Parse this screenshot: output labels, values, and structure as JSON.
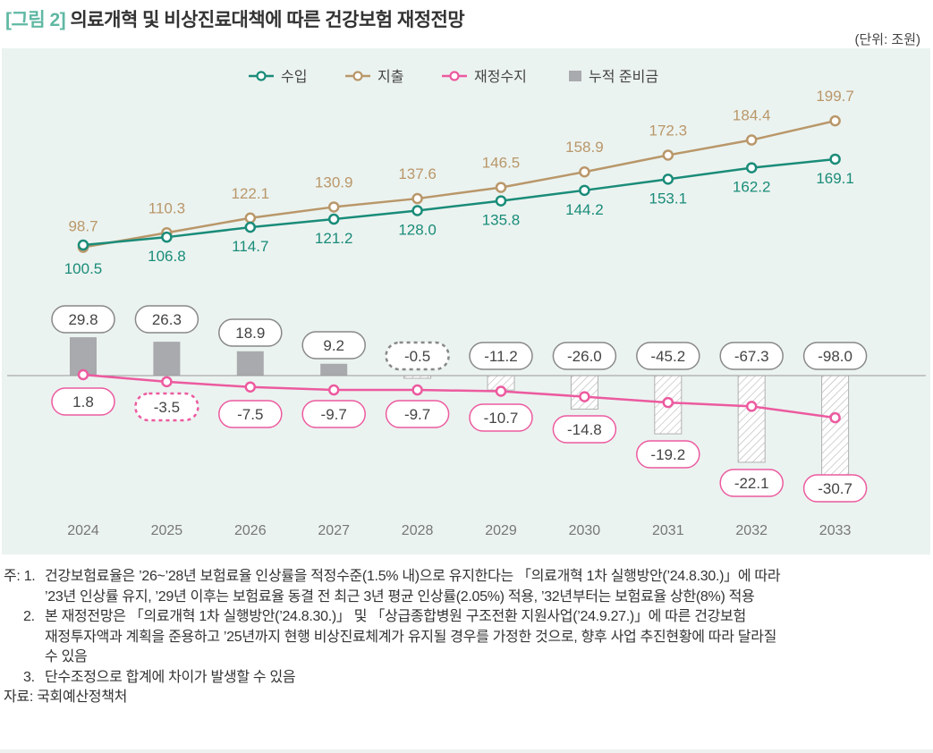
{
  "figure_label": "[그림 2]",
  "title": "의료개혁 및 비상진료대책에 따른 건강보험 재정전망",
  "unit": "(단위: 조원)",
  "colors": {
    "revenue": "#1a8c79",
    "expenditure": "#b9976a",
    "balance": "#ec5a9f",
    "reserve": "#a9aaad",
    "background": "#ebf3f0"
  },
  "chart_data": {
    "type": "line+bar",
    "categories": [
      "2024",
      "2025",
      "2026",
      "2027",
      "2028",
      "2029",
      "2030",
      "2031",
      "2032",
      "2033"
    ],
    "legend_placement": "top-center",
    "grid": false,
    "series": [
      {
        "name": "수입",
        "type": "line",
        "values": [
          100.5,
          106.8,
          114.7,
          121.2,
          128.0,
          135.8,
          144.2,
          153.1,
          162.2,
          169.1
        ],
        "labels": [
          "100.5",
          "106.8",
          "114.7",
          "121.2",
          "128.0",
          "135.8",
          "144.2",
          "153.1",
          "162.2",
          "169.1"
        ]
      },
      {
        "name": "지출",
        "type": "line",
        "values": [
          98.7,
          110.3,
          122.1,
          130.9,
          137.6,
          146.5,
          158.9,
          172.3,
          184.4,
          199.7
        ],
        "labels": [
          "98.7",
          "110.3",
          "122.1",
          "130.9",
          "137.6",
          "146.5",
          "158.9",
          "172.3",
          "184.4",
          "199.7"
        ]
      },
      {
        "name": "재정수지",
        "type": "line",
        "values": [
          1.8,
          -3.5,
          -7.5,
          -9.7,
          -9.7,
          -10.7,
          -14.8,
          -19.2,
          -22.1,
          -30.7
        ],
        "labels": [
          "1.8",
          "-3.5",
          "-7.5",
          "-9.7",
          "-9.7",
          "-10.7",
          "-14.8",
          "-19.2",
          "-22.1",
          "-30.7"
        ]
      },
      {
        "name": "누적 준비금",
        "type": "bar",
        "values": [
          29.8,
          26.3,
          18.9,
          9.2,
          -0.5,
          -11.2,
          -26.0,
          -45.2,
          -67.3,
          -98.0
        ],
        "labels": [
          "29.8",
          "26.3",
          "18.9",
          "9.2",
          "-0.5",
          "-11.2",
          "-26.0",
          "-45.2",
          "-67.3",
          "-98.0"
        ]
      }
    ]
  },
  "notes": [
    {
      "num": "주: 1.",
      "lines": [
        "건강보험료율은 ’26~’28년 보험료율 인상률을 적정수준(1.5% 내)으로 유지한다는 「의료개혁 1차 실행방안(’24.8.30.)」에 따라",
        "’23년 인상률 유지, ’29년 이후는 보험료율 동결 전 최근 3년 평균 인상률(2.05%) 적용, ’32년부터는 보험료율 상한(8%) 적용"
      ]
    },
    {
      "num": "2.",
      "lines": [
        "본 재정전망은 「의료개혁 1차 실행방안(’24.8.30.)」 및 「상급종합병원 구조전환 지원사업(’24.9.27.)」에 따른 건강보험",
        "재정투자액과 계획을 준용하고 ’25년까지 현행 비상진료체계가 유지될 경우를 가정한 것으로, 향후 사업 추진현황에 따라 달라질",
        "수 있음"
      ]
    },
    {
      "num": "3.",
      "lines": [
        "단수조정으로 합계에 차이가 발생할 수 있음"
      ]
    }
  ],
  "source": "자료: 국회예산정책처"
}
